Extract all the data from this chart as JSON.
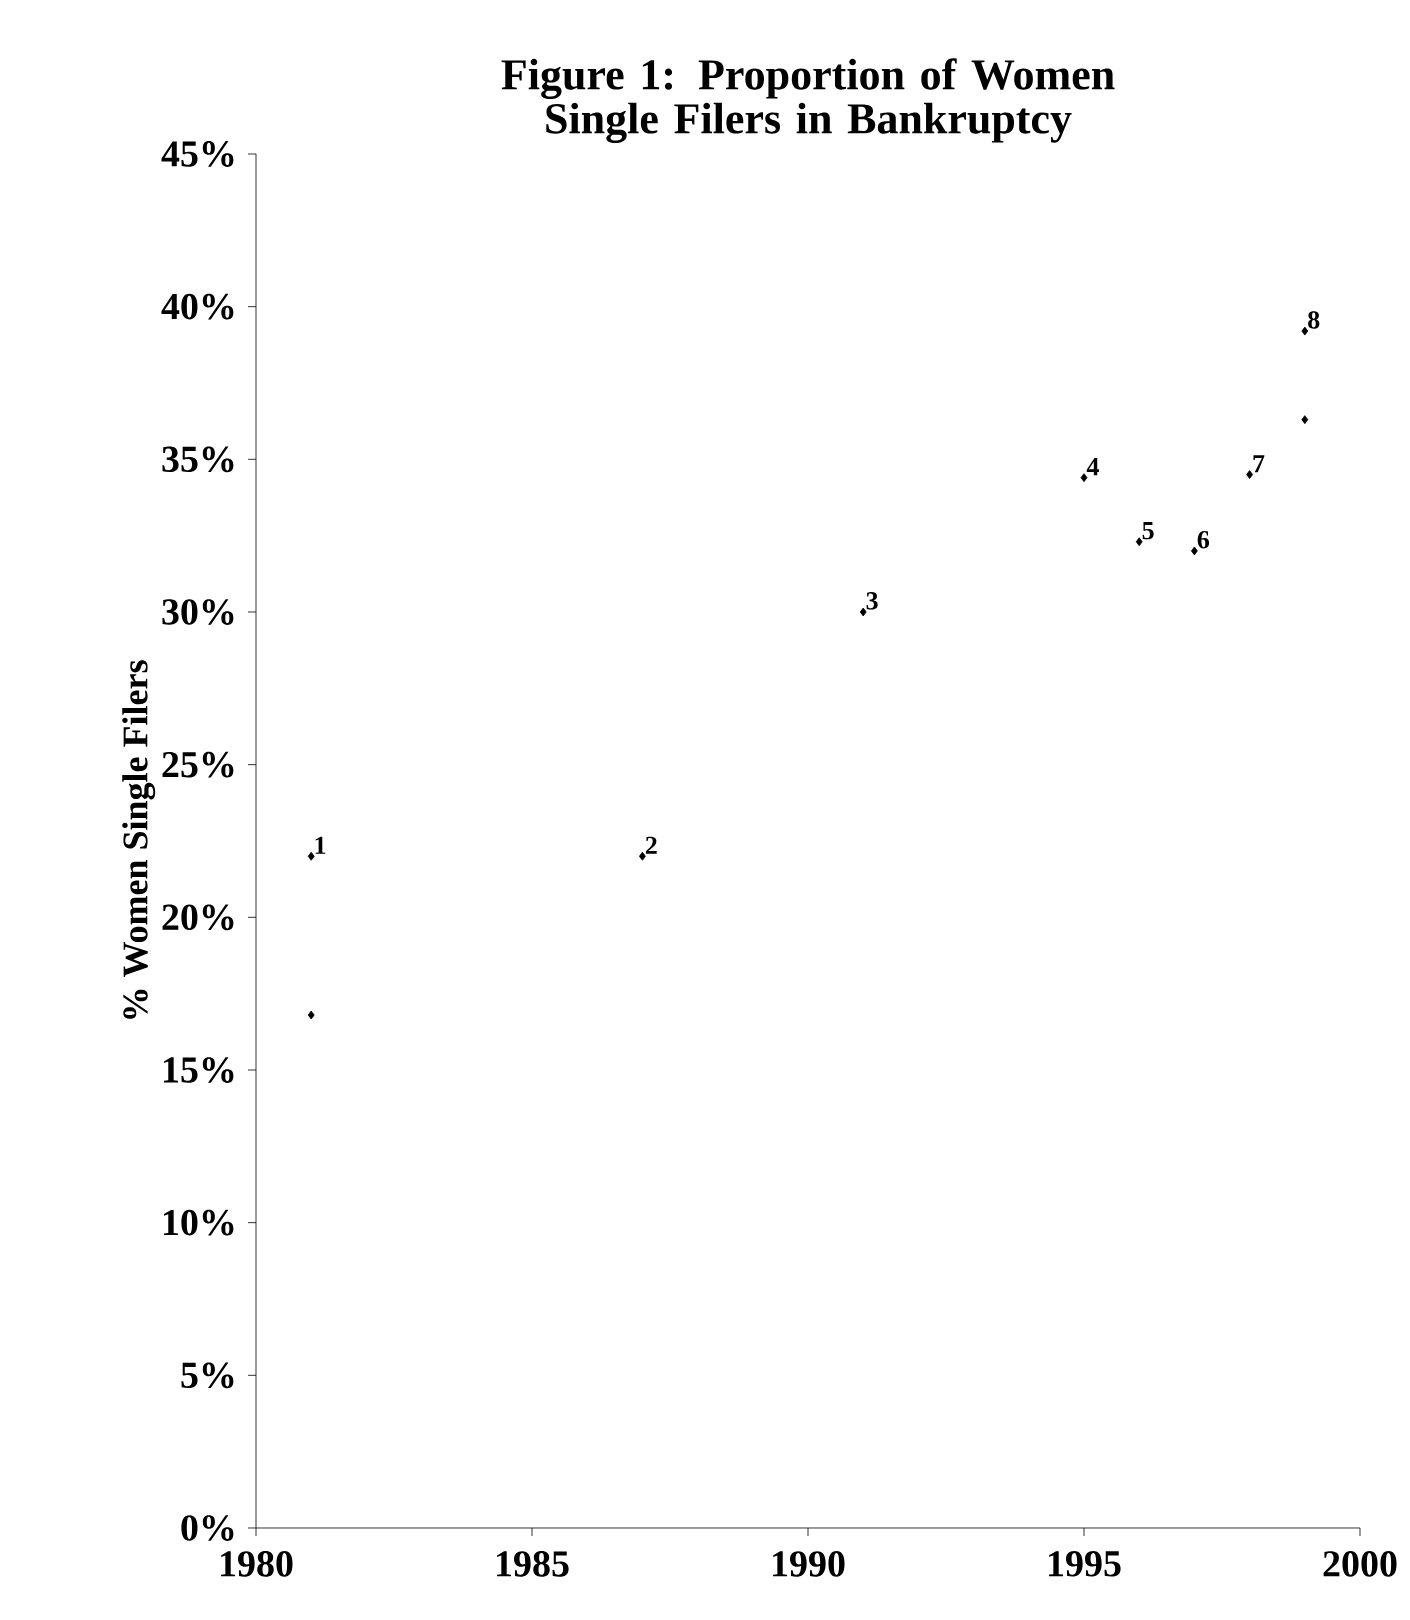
{
  "chart_data": {
    "type": "scatter",
    "title": "Figure 1: Proportion of Women Single Filers in Bankruptcy",
    "ylabel": "% Women Single Filers",
    "x": [
      1981,
      1981,
      1987,
      1991,
      1995,
      1996,
      1997,
      1998,
      1999,
      1999
    ],
    "values": [
      22.0,
      16.8,
      22.0,
      30.0,
      34.4,
      32.3,
      32.0,
      34.5,
      39.2,
      36.3
    ],
    "color": "#000000",
    "marker": "diamond",
    "xlim": [
      1980,
      2000
    ],
    "xticks": [
      1980,
      1985,
      1990,
      1995,
      2000
    ],
    "ylim": [
      0,
      45
    ],
    "yticks": [
      {
        "value": 0,
        "label": "0%"
      },
      {
        "value": 5,
        "label": "5%"
      },
      {
        "value": 10,
        "label": "10%"
      },
      {
        "value": 15,
        "label": "15%"
      },
      {
        "value": 20,
        "label": "20%"
      },
      {
        "value": 25,
        "label": "25%"
      },
      {
        "value": 30,
        "label": "30%"
      },
      {
        "value": 35,
        "label": "35%"
      },
      {
        "value": 40,
        "label": "40%"
      },
      {
        "value": 45,
        "label": "45%"
      }
    ],
    "annotations": [
      {
        "text": "1",
        "x": 1981,
        "y": 22.0
      },
      {
        "text": "2",
        "x": 1987,
        "y": 22.0
      },
      {
        "text": "3",
        "x": 1991,
        "y": 30.0
      },
      {
        "text": "4",
        "x": 1995,
        "y": 34.4
      },
      {
        "text": "5",
        "x": 1996,
        "y": 32.3
      },
      {
        "text": "6",
        "x": 1997,
        "y": 32.0
      },
      {
        "text": "7",
        "x": 1998,
        "y": 34.5
      },
      {
        "text": "8",
        "x": 1999,
        "y": 39.2
      }
    ],
    "grid": false
  }
}
